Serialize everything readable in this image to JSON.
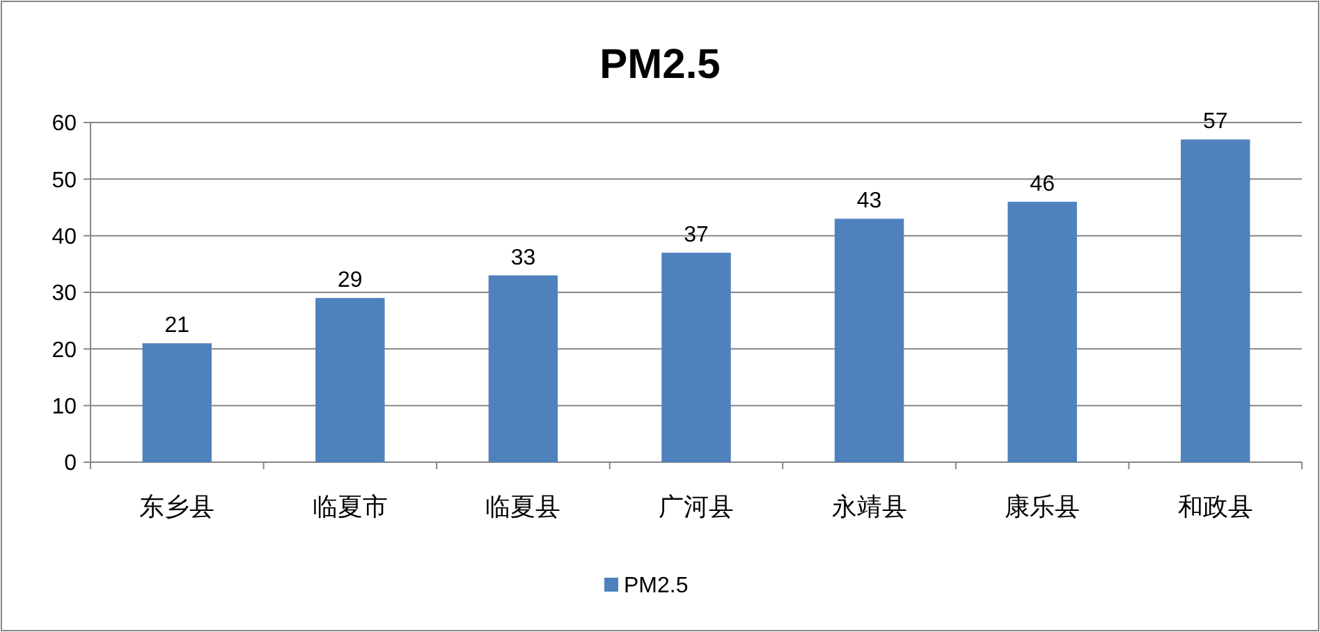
{
  "chart_data": {
    "type": "bar",
    "title": "PM2.5",
    "categories": [
      "东乡县",
      "临夏市",
      "临夏县",
      "广河县",
      "永靖县",
      "康乐县",
      "和政县"
    ],
    "series": [
      {
        "name": "PM2.5",
        "color": "#4f81bd",
        "values": [
          21,
          29,
          33,
          37,
          43,
          46,
          57
        ]
      }
    ],
    "ylim": [
      0,
      60
    ],
    "yticks": [
      0,
      10,
      20,
      30,
      40,
      50,
      60
    ],
    "grid": "y",
    "legend": "bottom",
    "data_labels": true
  }
}
